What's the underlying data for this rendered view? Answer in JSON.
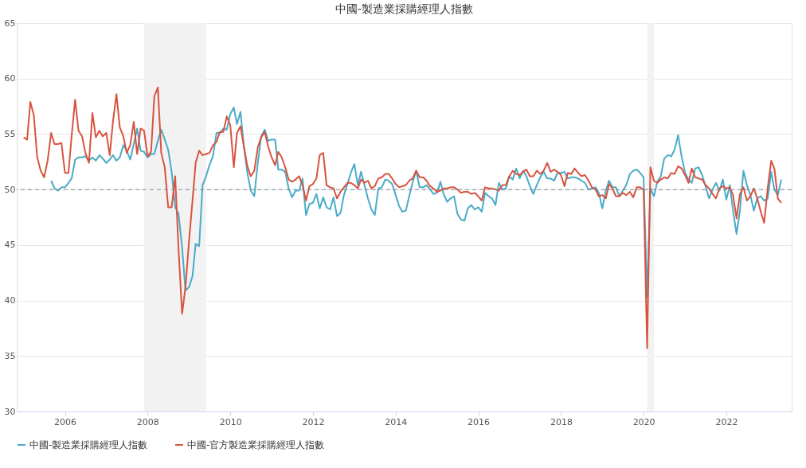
{
  "chart_data": {
    "type": "line",
    "title": "中國-製造業採購經理人指數",
    "xlim": [
      "2004-11",
      "2023-08"
    ],
    "xticks": [
      {
        "value": "2006",
        "label": "2006"
      },
      {
        "value": "2008",
        "label": "2008"
      },
      {
        "value": "2010",
        "label": "2010"
      },
      {
        "value": "2012",
        "label": "2012"
      },
      {
        "value": "2014",
        "label": "2014"
      },
      {
        "value": "2016",
        "label": "2016"
      },
      {
        "value": "2018",
        "label": "2018"
      },
      {
        "value": "2020",
        "label": "2020"
      },
      {
        "value": "2022",
        "label": "2022"
      }
    ],
    "ylim": [
      30,
      65
    ],
    "yticks": [
      30,
      35,
      40,
      45,
      50,
      55,
      60,
      65
    ],
    "grid": "y",
    "legend": "bottom",
    "marker": "none",
    "line_style": "solid",
    "ref_lines": [
      {
        "axis": "y",
        "value": 50,
        "color": "#7a8a99",
        "line_style": "dashed"
      }
    ],
    "bands": [
      {
        "axis": "x",
        "from": "2007-12",
        "to": "2009-06",
        "color": "#f2f2f2"
      },
      {
        "axis": "x",
        "from": "2020-02",
        "to": "2020-04",
        "color": "#f2f2f2"
      }
    ],
    "series": [
      {
        "name": "中國-製造業採購經理人指數",
        "color": "#4aabc8",
        "x": [
          "2005-09",
          "2005-10",
          "2005-11",
          "2005-12",
          "2006-01",
          "2006-02",
          "2006-03",
          "2006-04",
          "2006-05",
          "2006-06",
          "2006-07",
          "2006-08",
          "2006-09",
          "2006-10",
          "2006-11",
          "2006-12",
          "2007-01",
          "2007-02",
          "2007-03",
          "2007-04",
          "2007-05",
          "2007-06",
          "2007-07",
          "2007-08",
          "2007-09",
          "2007-10",
          "2007-11",
          "2007-12",
          "2008-01",
          "2008-02",
          "2008-03",
          "2008-04",
          "2008-05",
          "2008-06",
          "2008-07",
          "2008-08",
          "2008-09",
          "2008-10",
          "2008-11",
          "2008-12",
          "2009-01",
          "2009-02",
          "2009-03",
          "2009-04",
          "2009-05",
          "2009-06",
          "2009-07",
          "2009-08",
          "2009-09",
          "2009-10",
          "2009-11",
          "2009-12",
          "2010-01",
          "2010-02",
          "2010-03",
          "2010-04",
          "2010-05",
          "2010-06",
          "2010-07",
          "2010-08",
          "2010-09",
          "2010-10",
          "2010-11",
          "2010-12",
          "2011-01",
          "2011-02",
          "2011-03",
          "2011-04",
          "2011-05",
          "2011-06",
          "2011-07",
          "2011-08",
          "2011-09",
          "2011-10",
          "2011-11",
          "2011-12",
          "2012-01",
          "2012-02",
          "2012-03",
          "2012-04",
          "2012-05",
          "2012-06",
          "2012-07",
          "2012-08",
          "2012-09",
          "2012-10",
          "2012-11",
          "2012-12",
          "2013-01",
          "2013-02",
          "2013-03",
          "2013-04",
          "2013-05",
          "2013-06",
          "2013-07",
          "2013-08",
          "2013-09",
          "2013-10",
          "2013-11",
          "2013-12",
          "2014-01",
          "2014-02",
          "2014-03",
          "2014-04",
          "2014-05",
          "2014-06",
          "2014-07",
          "2014-08",
          "2014-09",
          "2014-10",
          "2014-11",
          "2014-12",
          "2015-01",
          "2015-02",
          "2015-03",
          "2015-04",
          "2015-05",
          "2015-06",
          "2015-07",
          "2015-08",
          "2015-09",
          "2015-10",
          "2015-11",
          "2015-12",
          "2016-01",
          "2016-02",
          "2016-03",
          "2016-04",
          "2016-05",
          "2016-06",
          "2016-07",
          "2016-08",
          "2016-09",
          "2016-10",
          "2016-11",
          "2016-12",
          "2017-01",
          "2017-02",
          "2017-03",
          "2017-04",
          "2017-05",
          "2017-06",
          "2017-07",
          "2017-08",
          "2017-09",
          "2017-10",
          "2017-11",
          "2017-12",
          "2018-01",
          "2018-02",
          "2018-03",
          "2018-04",
          "2018-05",
          "2018-06",
          "2018-07",
          "2018-08",
          "2018-09",
          "2018-10",
          "2018-11",
          "2018-12",
          "2019-01",
          "2019-02",
          "2019-03",
          "2019-04",
          "2019-05",
          "2019-06",
          "2019-07",
          "2019-08",
          "2019-09",
          "2019-10",
          "2019-11",
          "2019-12",
          "2020-01",
          "2020-02",
          "2020-03",
          "2020-04",
          "2020-05",
          "2020-06",
          "2020-07",
          "2020-08",
          "2020-09",
          "2020-10",
          "2020-11",
          "2020-12",
          "2021-01",
          "2021-02",
          "2021-03",
          "2021-04",
          "2021-05",
          "2021-06",
          "2021-07",
          "2021-08",
          "2021-09",
          "2021-10",
          "2021-11",
          "2021-12",
          "2022-01",
          "2022-02",
          "2022-03",
          "2022-04",
          "2022-05",
          "2022-06",
          "2022-07",
          "2022-08",
          "2022-09",
          "2022-10",
          "2022-11",
          "2022-12",
          "2023-01",
          "2023-02",
          "2023-03",
          "2023-04",
          "2023-05"
        ],
        "values": [
          50.8,
          50.1,
          49.9,
          50.2,
          50.2,
          50.6,
          51.0,
          52.7,
          52.9,
          52.9,
          53.0,
          52.6,
          52.9,
          52.6,
          53.1,
          52.8,
          52.4,
          52.7,
          53.1,
          52.6,
          52.9,
          54.0,
          53.5,
          52.7,
          54.1,
          55.5,
          53.5,
          53.4,
          52.9,
          53.2,
          53.2,
          54.4,
          55.4,
          54.5,
          53.6,
          51.6,
          48.4,
          47.8,
          44.8,
          40.9,
          41.2,
          42.2,
          45.1,
          44.9,
          50.4,
          51.2,
          52.2,
          53.0,
          55.1,
          55.1,
          55.5,
          55.4,
          56.8,
          57.4,
          55.9,
          57.0,
          53.9,
          51.5,
          49.9,
          49.4,
          52.4,
          54.8,
          55.4,
          54.4,
          54.5,
          54.5,
          51.8,
          51.8,
          51.6,
          50.1,
          49.3,
          49.9,
          49.9,
          51.0,
          47.7,
          48.7,
          48.8,
          49.6,
          48.3,
          49.3,
          48.4,
          48.2,
          49.3,
          47.6,
          47.9,
          49.5,
          50.5,
          51.5,
          52.3,
          50.4,
          51.6,
          50.4,
          49.2,
          48.2,
          47.7,
          50.1,
          50.2,
          50.9,
          50.8,
          50.5,
          49.5,
          48.5,
          48.0,
          48.1,
          49.4,
          50.7,
          51.7,
          50.2,
          50.2,
          50.4,
          50.0,
          49.6,
          49.7,
          50.7,
          49.6,
          48.9,
          49.2,
          49.4,
          47.8,
          47.3,
          47.2,
          48.3,
          48.6,
          48.2,
          48.4,
          48.0,
          49.7,
          49.4,
          49.2,
          48.6,
          50.6,
          50.0,
          50.1,
          51.2,
          50.9,
          51.9,
          51.0,
          51.7,
          51.2,
          50.3,
          49.6,
          50.4,
          51.1,
          51.6,
          51.0,
          51.0,
          50.8,
          51.5,
          51.5,
          51.6,
          51.0,
          51.1,
          51.1,
          51.0,
          50.8,
          50.6,
          50.0,
          50.1,
          50.2,
          49.7,
          48.3,
          49.9,
          50.8,
          50.2,
          50.2,
          49.4,
          49.9,
          50.4,
          51.4,
          51.7,
          51.8,
          51.5,
          51.1,
          40.3,
          50.1,
          49.4,
          50.7,
          51.2,
          52.8,
          53.1,
          53.0,
          53.6,
          54.9,
          53.0,
          51.5,
          50.9,
          50.6,
          51.9,
          52.0,
          51.3,
          50.3,
          49.2,
          50.0,
          50.6,
          49.9,
          50.9,
          49.1,
          50.4,
          48.1,
          46.0,
          48.1,
          51.7,
          50.4,
          49.5,
          48.1,
          49.2,
          49.4,
          49.0,
          49.2,
          51.6,
          50.0,
          49.5,
          50.9
        ]
      },
      {
        "name": "中國-官方製造業採購經理人指數",
        "color": "#d9533f",
        "x": [
          "2005-01",
          "2005-02",
          "2005-03",
          "2005-04",
          "2005-05",
          "2005-06",
          "2005-07",
          "2005-08",
          "2005-09",
          "2005-10",
          "2005-11",
          "2005-12",
          "2006-01",
          "2006-02",
          "2006-03",
          "2006-04",
          "2006-05",
          "2006-06",
          "2006-07",
          "2006-08",
          "2006-09",
          "2006-10",
          "2006-11",
          "2006-12",
          "2007-01",
          "2007-02",
          "2007-03",
          "2007-04",
          "2007-05",
          "2007-06",
          "2007-07",
          "2007-08",
          "2007-09",
          "2007-10",
          "2007-11",
          "2007-12",
          "2008-01",
          "2008-02",
          "2008-03",
          "2008-04",
          "2008-05",
          "2008-06",
          "2008-07",
          "2008-08",
          "2008-09",
          "2008-10",
          "2008-11",
          "2008-12",
          "2009-01",
          "2009-02",
          "2009-03",
          "2009-04",
          "2009-05",
          "2009-06",
          "2009-07",
          "2009-08",
          "2009-09",
          "2009-10",
          "2009-11",
          "2009-12",
          "2010-01",
          "2010-02",
          "2010-03",
          "2010-04",
          "2010-05",
          "2010-06",
          "2010-07",
          "2010-08",
          "2010-09",
          "2010-10",
          "2010-11",
          "2010-12",
          "2011-01",
          "2011-02",
          "2011-03",
          "2011-04",
          "2011-05",
          "2011-06",
          "2011-07",
          "2011-08",
          "2011-09",
          "2011-10",
          "2011-11",
          "2011-12",
          "2012-01",
          "2012-02",
          "2012-03",
          "2012-04",
          "2012-05",
          "2012-06",
          "2012-07",
          "2012-08",
          "2012-09",
          "2012-10",
          "2012-11",
          "2012-12",
          "2013-01",
          "2013-02",
          "2013-03",
          "2013-04",
          "2013-05",
          "2013-06",
          "2013-07",
          "2013-08",
          "2013-09",
          "2013-10",
          "2013-11",
          "2013-12",
          "2014-01",
          "2014-02",
          "2014-03",
          "2014-04",
          "2014-05",
          "2014-06",
          "2014-07",
          "2014-08",
          "2014-09",
          "2014-10",
          "2014-11",
          "2014-12",
          "2015-01",
          "2015-02",
          "2015-03",
          "2015-04",
          "2015-05",
          "2015-06",
          "2015-07",
          "2015-08",
          "2015-09",
          "2015-10",
          "2015-11",
          "2015-12",
          "2016-01",
          "2016-02",
          "2016-03",
          "2016-04",
          "2016-05",
          "2016-06",
          "2016-07",
          "2016-08",
          "2016-09",
          "2016-10",
          "2016-11",
          "2016-12",
          "2017-01",
          "2017-02",
          "2017-03",
          "2017-04",
          "2017-05",
          "2017-06",
          "2017-07",
          "2017-08",
          "2017-09",
          "2017-10",
          "2017-11",
          "2017-12",
          "2018-01",
          "2018-02",
          "2018-03",
          "2018-04",
          "2018-05",
          "2018-06",
          "2018-07",
          "2018-08",
          "2018-09",
          "2018-10",
          "2018-11",
          "2018-12",
          "2019-01",
          "2019-02",
          "2019-03",
          "2019-04",
          "2019-05",
          "2019-06",
          "2019-07",
          "2019-08",
          "2019-09",
          "2019-10",
          "2019-11",
          "2019-12",
          "2020-01",
          "2020-02",
          "2020-03",
          "2020-04",
          "2020-05",
          "2020-06",
          "2020-07",
          "2020-08",
          "2020-09",
          "2020-10",
          "2020-11",
          "2020-12",
          "2021-01",
          "2021-02",
          "2021-03",
          "2021-04",
          "2021-05",
          "2021-06",
          "2021-07",
          "2021-08",
          "2021-09",
          "2021-10",
          "2021-11",
          "2021-12",
          "2022-01",
          "2022-02",
          "2022-03",
          "2022-04",
          "2022-05",
          "2022-06",
          "2022-07",
          "2022-08",
          "2022-09",
          "2022-10",
          "2022-11",
          "2022-12",
          "2023-01",
          "2023-02",
          "2023-03",
          "2023-04",
          "2023-05"
        ],
        "values": [
          54.7,
          54.5,
          57.9,
          56.7,
          52.9,
          51.7,
          51.1,
          52.6,
          55.1,
          54.1,
          54.1,
          54.2,
          51.5,
          51.5,
          54.8,
          58.1,
          55.3,
          54.8,
          53.3,
          52.4,
          56.9,
          54.7,
          55.3,
          54.8,
          55.1,
          53.1,
          56.1,
          58.6,
          55.6,
          54.8,
          53.3,
          54.0,
          56.1,
          53.2,
          55.5,
          55.3,
          53.0,
          53.4,
          58.4,
          59.2,
          53.3,
          52.0,
          48.4,
          48.4,
          51.2,
          44.6,
          38.8,
          41.2,
          45.3,
          49.0,
          52.4,
          53.5,
          53.1,
          53.2,
          53.3,
          54.0,
          54.3,
          55.2,
          55.2,
          56.6,
          55.8,
          52.0,
          55.1,
          55.7,
          53.9,
          52.1,
          51.2,
          51.7,
          53.8,
          54.7,
          55.2,
          53.9,
          52.9,
          52.2,
          53.4,
          52.9,
          52.0,
          50.9,
          50.7,
          50.9,
          51.2,
          50.4,
          49.0,
          50.3,
          50.5,
          51.0,
          53.1,
          53.3,
          50.4,
          50.2,
          50.1,
          49.2,
          49.8,
          50.2,
          50.6,
          50.6,
          50.4,
          50.1,
          50.9,
          50.6,
          50.8,
          50.1,
          50.3,
          51.0,
          51.1,
          51.4,
          51.4,
          51.0,
          50.5,
          50.2,
          50.3,
          50.4,
          50.8,
          51.0,
          51.7,
          51.1,
          51.1,
          50.8,
          50.3,
          50.1,
          49.8,
          49.9,
          50.1,
          50.1,
          50.2,
          50.2,
          50.0,
          49.7,
          49.8,
          49.8,
          49.6,
          49.7,
          49.4,
          49.0,
          50.2,
          50.1,
          50.1,
          50.0,
          49.9,
          50.4,
          50.4,
          51.2,
          51.7,
          51.4,
          51.3,
          51.6,
          51.8,
          51.2,
          51.2,
          51.7,
          51.4,
          51.7,
          52.4,
          51.6,
          51.8,
          51.6,
          51.3,
          50.3,
          51.5,
          51.4,
          51.9,
          51.5,
          51.2,
          51.3,
          50.8,
          50.2,
          50.0,
          49.4,
          49.5,
          49.2,
          50.5,
          50.1,
          49.4,
          49.4,
          49.7,
          49.5,
          49.8,
          49.3,
          50.2,
          50.2,
          50.0,
          35.7,
          52.0,
          50.8,
          50.6,
          50.9,
          51.1,
          51.0,
          51.5,
          51.4,
          52.1,
          51.9,
          51.3,
          50.6,
          51.9,
          51.1,
          51.0,
          50.9,
          50.4,
          50.1,
          49.6,
          49.2,
          50.1,
          50.3,
          50.1,
          50.2,
          49.5,
          47.4,
          49.6,
          50.2,
          49.0,
          49.4,
          50.1,
          49.2,
          48.0,
          47.0,
          50.1,
          52.6,
          51.9,
          49.2,
          48.8
        ]
      }
    ]
  }
}
